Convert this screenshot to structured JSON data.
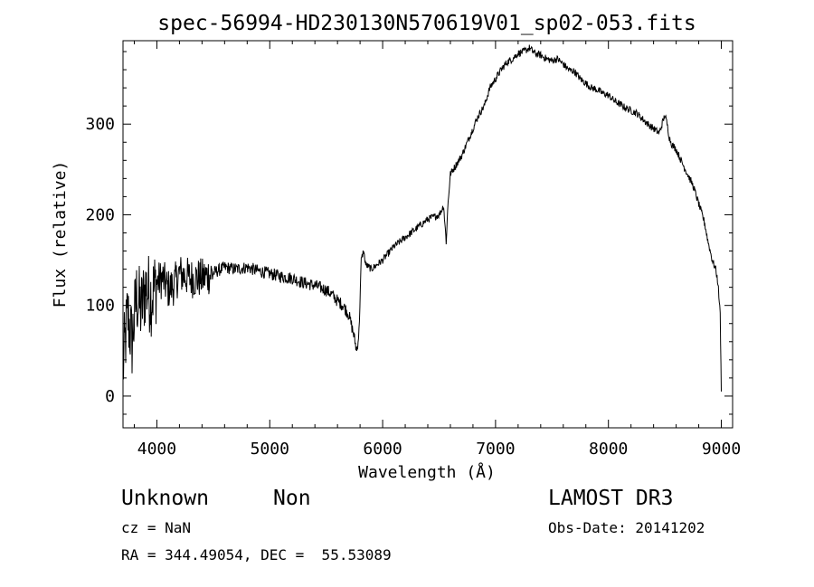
{
  "chart_data": {
    "type": "line",
    "title": "spec-56994-HD230130N570619V01_sp02-053.fits",
    "xlabel": "Wavelength (Å)",
    "ylabel": "Flux (relative)",
    "xlim": [
      3700,
      9100
    ],
    "ylim": [
      -35,
      392
    ],
    "x_ticks": [
      "4000",
      "5000",
      "6000",
      "7000",
      "8000",
      "9000"
    ],
    "y_ticks": [
      "0",
      "100",
      "200",
      "300"
    ],
    "grid": false,
    "series": [
      {
        "x": [
          3700,
          3740,
          3780,
          3820,
          3860,
          3900,
          3950,
          4000,
          4050,
          4100,
          4150,
          4200,
          4300,
          4400,
          4500,
          4600,
          4700,
          4800,
          4900,
          5000,
          5100,
          5200,
          5300,
          5400,
          5500,
          5550,
          5600,
          5650,
          5700,
          5740,
          5770,
          5790,
          5810,
          5830,
          5850,
          5900,
          5950,
          6000,
          6100,
          6200,
          6300,
          6400,
          6500,
          6540,
          6563,
          6580,
          6600,
          6650,
          6700,
          6750,
          6800,
          6850,
          6900,
          6950,
          7000,
          7050,
          7100,
          7150,
          7200,
          7250,
          7300,
          7350,
          7400,
          7450,
          7500,
          7550,
          7600,
          7650,
          7700,
          7750,
          7800,
          7850,
          7900,
          7950,
          8000,
          8050,
          8100,
          8150,
          8200,
          8250,
          8300,
          8350,
          8400,
          8450,
          8500,
          8520,
          8540,
          8560,
          8600,
          8650,
          8700,
          8750,
          8800,
          8850,
          8880,
          8920,
          8950,
          8970,
          8990,
          9000
        ],
        "y": [
          30,
          90,
          60,
          110,
          95,
          120,
          110,
          125,
          130,
          118,
          122,
          135,
          130,
          130,
          136,
          142,
          140,
          142,
          138,
          135,
          132,
          130,
          125,
          122,
          117,
          112,
          105,
          100,
          90,
          70,
          50,
          70,
          150,
          160,
          145,
          140,
          145,
          150,
          165,
          175,
          185,
          195,
          200,
          210,
          170,
          215,
          245,
          255,
          265,
          280,
          295,
          310,
          320,
          340,
          350,
          360,
          368,
          372,
          378,
          380,
          384,
          378,
          376,
          372,
          370,
          372,
          366,
          360,
          358,
          350,
          345,
          340,
          338,
          334,
          332,
          326,
          322,
          318,
          315,
          312,
          306,
          300,
          295,
          290,
          310,
          300,
          285,
          278,
          272,
          258,
          245,
          232,
          212,
          192,
          172,
          150,
          140,
          125,
          90,
          5
        ]
      }
    ]
  },
  "annotations": {
    "object_class": "Unknown",
    "object_subclass": "Non",
    "survey": "LAMOST DR3",
    "redshift": "cz = NaN",
    "obs_date": "Obs-Date: 20141202",
    "coordinates": "RA = 344.49054, DEC =  55.53089"
  }
}
